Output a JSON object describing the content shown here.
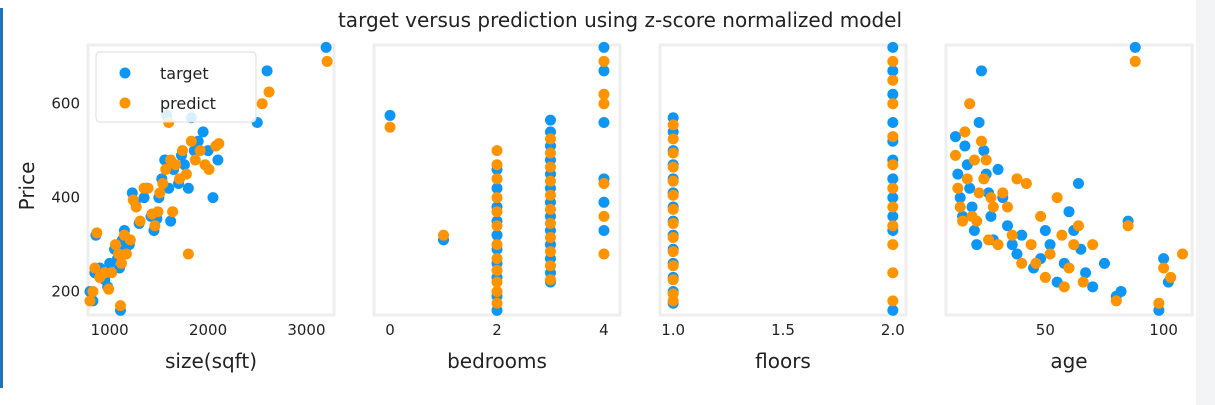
{
  "chart_data": {
    "type": "scatter",
    "title": "target versus prediction using z-score normalized model",
    "ylabel": "Price",
    "ylim": [
      150,
      725
    ],
    "colors": {
      "target": "#0d96f6",
      "predict": "#ff9300",
      "frame": "#eeeeee"
    },
    "legend": {
      "placement": "top-left",
      "entries": [
        "target",
        "predict"
      ]
    },
    "grid": false,
    "y_ticks": [
      "200",
      "400",
      "600"
    ],
    "y_tick_values": [
      200,
      400,
      600
    ],
    "panels": [
      {
        "xlabel": "size(sqft)",
        "xlim": [
          780,
          3280
        ],
        "x_ticks": [
          "1000",
          "2000",
          "3000"
        ],
        "x_tick_values": [
          1000,
          2000,
          3000
        ],
        "target": [
          [
            800,
            200
          ],
          [
            830,
            180
          ],
          [
            850,
            240
          ],
          [
            860,
            320
          ],
          [
            900,
            250
          ],
          [
            950,
            225
          ],
          [
            980,
            210
          ],
          [
            1000,
            260
          ],
          [
            1050,
            290
          ],
          [
            1080,
            270
          ],
          [
            1100,
            250
          ],
          [
            1110,
            160
          ],
          [
            1130,
            310
          ],
          [
            1150,
            330
          ],
          [
            1160,
            290
          ],
          [
            1200,
            300
          ],
          [
            1230,
            410
          ],
          [
            1260,
            390
          ],
          [
            1300,
            345
          ],
          [
            1350,
            400
          ],
          [
            1380,
            420
          ],
          [
            1420,
            360
          ],
          [
            1450,
            330
          ],
          [
            1480,
            355
          ],
          [
            1500,
            400
          ],
          [
            1530,
            440
          ],
          [
            1560,
            480
          ],
          [
            1580,
            575
          ],
          [
            1600,
            420
          ],
          [
            1620,
            350
          ],
          [
            1650,
            460
          ],
          [
            1700,
            430
          ],
          [
            1730,
            490
          ],
          [
            1760,
            470
          ],
          [
            1800,
            420
          ],
          [
            1830,
            570
          ],
          [
            1860,
            500
          ],
          [
            1900,
            520
          ],
          [
            1950,
            540
          ],
          [
            2000,
            500
          ],
          [
            2050,
            400
          ],
          [
            2100,
            480
          ],
          [
            2500,
            560
          ],
          [
            2600,
            670
          ],
          [
            3200,
            720
          ]
        ],
        "predict": [
          [
            800,
            180
          ],
          [
            830,
            200
          ],
          [
            850,
            250
          ],
          [
            870,
            325
          ],
          [
            900,
            230
          ],
          [
            950,
            240
          ],
          [
            990,
            205
          ],
          [
            1020,
            240
          ],
          [
            1060,
            300
          ],
          [
            1090,
            280
          ],
          [
            1110,
            170
          ],
          [
            1120,
            260
          ],
          [
            1150,
            320
          ],
          [
            1170,
            280
          ],
          [
            1210,
            310
          ],
          [
            1240,
            395
          ],
          [
            1270,
            380
          ],
          [
            1310,
            350
          ],
          [
            1350,
            420
          ],
          [
            1390,
            420
          ],
          [
            1430,
            365
          ],
          [
            1460,
            340
          ],
          [
            1490,
            370
          ],
          [
            1510,
            410
          ],
          [
            1540,
            430
          ],
          [
            1570,
            460
          ],
          [
            1600,
            560
          ],
          [
            1620,
            480
          ],
          [
            1640,
            370
          ],
          [
            1670,
            470
          ],
          [
            1710,
            440
          ],
          [
            1740,
            500
          ],
          [
            1780,
            450
          ],
          [
            1800,
            280
          ],
          [
            1830,
            520
          ],
          [
            1870,
            480
          ],
          [
            1920,
            500
          ],
          [
            1970,
            470
          ],
          [
            2010,
            460
          ],
          [
            2080,
            510
          ],
          [
            2110,
            515
          ],
          [
            2550,
            600
          ],
          [
            2620,
            625
          ],
          [
            3210,
            690
          ]
        ]
      },
      {
        "xlabel": "bedrooms",
        "xlim": [
          -0.3,
          4.3
        ],
        "x_ticks": [
          "0",
          "2",
          "4"
        ],
        "x_tick_values": [
          0,
          2,
          4
        ],
        "target": [
          [
            0,
            575
          ],
          [
            1,
            310
          ],
          [
            2,
            160
          ],
          [
            2,
            190
          ],
          [
            2,
            230
          ],
          [
            2,
            260
          ],
          [
            2,
            290
          ],
          [
            2,
            320
          ],
          [
            2,
            350
          ],
          [
            2,
            380
          ],
          [
            2,
            420
          ],
          [
            2,
            460
          ],
          [
            3,
            220
          ],
          [
            3,
            240
          ],
          [
            3,
            270
          ],
          [
            3,
            300
          ],
          [
            3,
            330
          ],
          [
            3,
            360
          ],
          [
            3,
            390
          ],
          [
            3,
            420
          ],
          [
            3,
            450
          ],
          [
            3,
            480
          ],
          [
            3,
            510
          ],
          [
            3,
            540
          ],
          [
            3,
            565
          ],
          [
            4,
            720
          ],
          [
            4,
            670
          ],
          [
            4,
            560
          ],
          [
            4,
            440
          ],
          [
            4,
            390
          ],
          [
            4,
            330
          ]
        ],
        "predict": [
          [
            0,
            550
          ],
          [
            1,
            320
          ],
          [
            2,
            175
          ],
          [
            2,
            200
          ],
          [
            2,
            220
          ],
          [
            2,
            245
          ],
          [
            2,
            270
          ],
          [
            2,
            300
          ],
          [
            2,
            340
          ],
          [
            2,
            370
          ],
          [
            2,
            400
          ],
          [
            2,
            440
          ],
          [
            2,
            470
          ],
          [
            2,
            500
          ],
          [
            3,
            225
          ],
          [
            3,
            255
          ],
          [
            3,
            285
          ],
          [
            3,
            315
          ],
          [
            3,
            345
          ],
          [
            3,
            375
          ],
          [
            3,
            405
          ],
          [
            3,
            435
          ],
          [
            3,
            465
          ],
          [
            3,
            495
          ],
          [
            3,
            525
          ],
          [
            4,
            690
          ],
          [
            4,
            620
          ],
          [
            4,
            600
          ],
          [
            4,
            430
          ],
          [
            4,
            360
          ],
          [
            4,
            280
          ]
        ]
      },
      {
        "xlabel": "floors",
        "xlim": [
          0.94,
          2.06
        ],
        "x_ticks": [
          "1.0",
          "1.5",
          "2.0"
        ],
        "x_tick_values": [
          1.0,
          1.5,
          2.0
        ],
        "target": [
          [
            1.0,
            570
          ],
          [
            1.0,
            540
          ],
          [
            1.0,
            500
          ],
          [
            1.0,
            470
          ],
          [
            1.0,
            440
          ],
          [
            1.0,
            410
          ],
          [
            1.0,
            380
          ],
          [
            1.0,
            350
          ],
          [
            1.0,
            320
          ],
          [
            1.0,
            290
          ],
          [
            1.0,
            260
          ],
          [
            1.0,
            230
          ],
          [
            1.0,
            200
          ],
          [
            1.0,
            175
          ],
          [
            2.0,
            720
          ],
          [
            2.0,
            670
          ],
          [
            2.0,
            620
          ],
          [
            2.0,
            560
          ],
          [
            2.0,
            520
          ],
          [
            2.0,
            480
          ],
          [
            2.0,
            440
          ],
          [
            2.0,
            400
          ],
          [
            2.0,
            360
          ],
          [
            2.0,
            330
          ],
          [
            2.0,
            160
          ]
        ],
        "predict": [
          [
            1.0,
            555
          ],
          [
            1.0,
            525
          ],
          [
            1.0,
            495
          ],
          [
            1.0,
            465
          ],
          [
            1.0,
            435
          ],
          [
            1.0,
            405
          ],
          [
            1.0,
            375
          ],
          [
            1.0,
            345
          ],
          [
            1.0,
            315
          ],
          [
            1.0,
            285
          ],
          [
            1.0,
            255
          ],
          [
            1.0,
            225
          ],
          [
            1.0,
            195
          ],
          [
            1.0,
            180
          ],
          [
            2.0,
            690
          ],
          [
            2.0,
            650
          ],
          [
            2.0,
            600
          ],
          [
            2.0,
            530
          ],
          [
            2.0,
            470
          ],
          [
            2.0,
            420
          ],
          [
            2.0,
            380
          ],
          [
            2.0,
            340
          ],
          [
            2.0,
            300
          ],
          [
            2.0,
            240
          ],
          [
            2.0,
            180
          ]
        ]
      },
      {
        "xlabel": "age",
        "xlim": [
          8,
          112
        ],
        "x_ticks": [
          "50",
          "100"
        ],
        "x_tick_values": [
          50,
          100
        ],
        "target": [
          [
            12,
            530
          ],
          [
            13,
            450
          ],
          [
            14,
            400
          ],
          [
            15,
            360
          ],
          [
            16,
            510
          ],
          [
            17,
            470
          ],
          [
            18,
            420
          ],
          [
            19,
            380
          ],
          [
            20,
            330
          ],
          [
            21,
            300
          ],
          [
            22,
            560
          ],
          [
            23,
            670
          ],
          [
            24,
            500
          ],
          [
            25,
            450
          ],
          [
            26,
            410
          ],
          [
            27,
            360
          ],
          [
            28,
            310
          ],
          [
            30,
            460
          ],
          [
            32,
            400
          ],
          [
            34,
            340
          ],
          [
            36,
            300
          ],
          [
            38,
            280
          ],
          [
            40,
            320
          ],
          [
            45,
            250
          ],
          [
            48,
            270
          ],
          [
            50,
            330
          ],
          [
            52,
            300
          ],
          [
            55,
            220
          ],
          [
            58,
            260
          ],
          [
            60,
            370
          ],
          [
            62,
            330
          ],
          [
            64,
            430
          ],
          [
            65,
            290
          ],
          [
            67,
            240
          ],
          [
            70,
            210
          ],
          [
            75,
            260
          ],
          [
            80,
            190
          ],
          [
            82,
            200
          ],
          [
            85,
            350
          ],
          [
            88,
            720
          ],
          [
            98,
            160
          ],
          [
            100,
            270
          ],
          [
            102,
            220
          ]
        ],
        "predict": [
          [
            12,
            490
          ],
          [
            13,
            420
          ],
          [
            14,
            380
          ],
          [
            15,
            350
          ],
          [
            16,
            540
          ],
          [
            17,
            440
          ],
          [
            18,
            600
          ],
          [
            19,
            360
          ],
          [
            20,
            480
          ],
          [
            21,
            350
          ],
          [
            22,
            410
          ],
          [
            23,
            520
          ],
          [
            24,
            440
          ],
          [
            25,
            480
          ],
          [
            26,
            310
          ],
          [
            27,
            400
          ],
          [
            28,
            380
          ],
          [
            30,
            300
          ],
          [
            32,
            410
          ],
          [
            34,
            380
          ],
          [
            36,
            320
          ],
          [
            38,
            440
          ],
          [
            40,
            260
          ],
          [
            42,
            430
          ],
          [
            44,
            300
          ],
          [
            46,
            260
          ],
          [
            48,
            360
          ],
          [
            50,
            230
          ],
          [
            52,
            280
          ],
          [
            55,
            400
          ],
          [
            57,
            320
          ],
          [
            58,
            210
          ],
          [
            60,
            250
          ],
          [
            62,
            300
          ],
          [
            64,
            340
          ],
          [
            66,
            220
          ],
          [
            70,
            300
          ],
          [
            80,
            180
          ],
          [
            85,
            340
          ],
          [
            88,
            690
          ],
          [
            98,
            175
          ],
          [
            100,
            250
          ],
          [
            103,
            230
          ],
          [
            108,
            280
          ]
        ]
      }
    ]
  }
}
